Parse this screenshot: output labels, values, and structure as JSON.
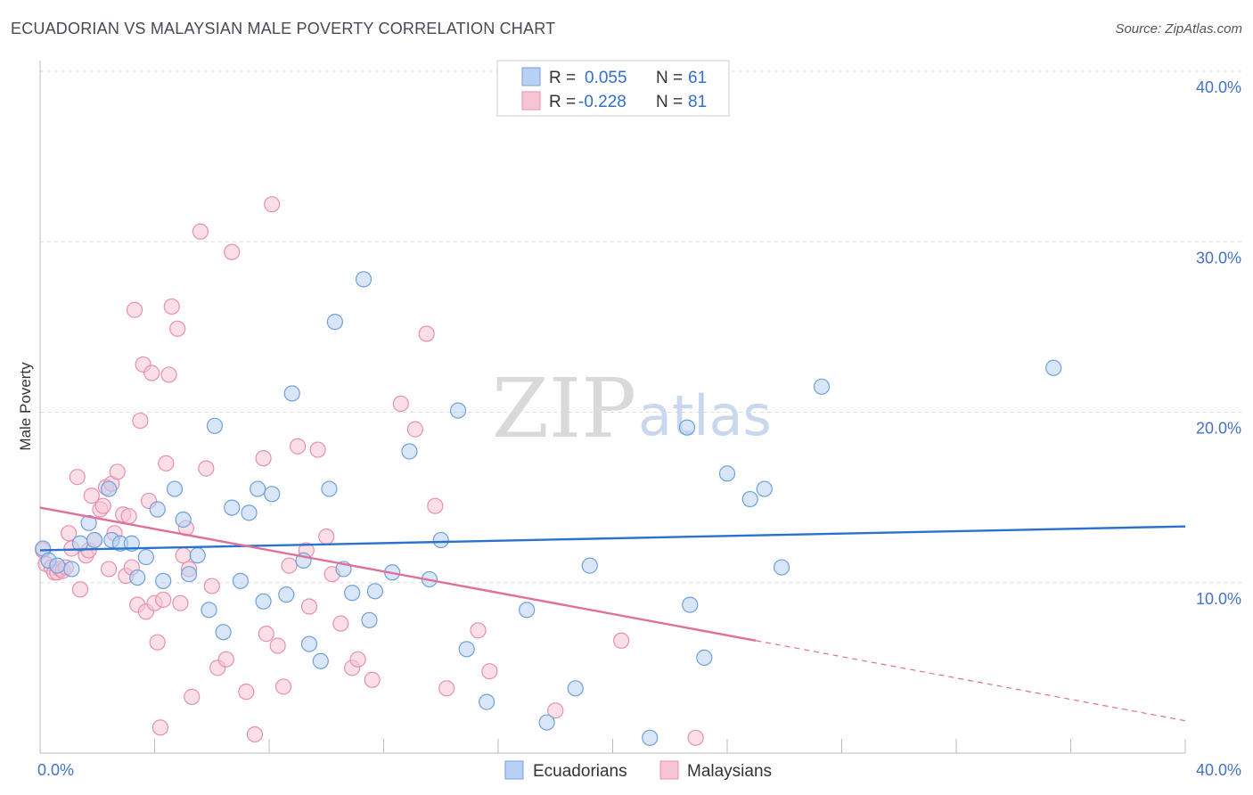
{
  "title": "ECUADORIAN VS MALAYSIAN MALE POVERTY CORRELATION CHART",
  "source": "Source: ZipAtlas.com",
  "watermark": {
    "zip": "ZIP",
    "atlas": "atlas"
  },
  "colors": {
    "blue": "#6fa0dc",
    "blue_fill": "#b8d1f2",
    "blue_line": "#2a72cc",
    "pink": "#e98fae",
    "pink_fill": "#f7c4d4",
    "pink_line": "#e0709a",
    "tick": "#4472c4",
    "grid": "#dddddd"
  },
  "legend": {
    "rows": [
      {
        "r_label": "R =",
        "r_value": "0.055",
        "n_label": "N =",
        "n_value": "61"
      },
      {
        "r_label": "R =",
        "r_value": "-0.228",
        "n_label": "N =",
        "n_value": "81"
      }
    ]
  },
  "bottom_legend": [
    "Ecuadorians",
    "Malaysians"
  ],
  "chart_data": {
    "type": "scatter",
    "title": "ECUADORIAN VS MALAYSIAN MALE POVERTY CORRELATION CHART",
    "xlabel": "",
    "ylabel": "Male Poverty",
    "xlim": [
      0,
      40
    ],
    "ylim": [
      0,
      40
    ],
    "x_tick_labels": [
      "0.0%",
      "40.0%"
    ],
    "y_ticks": [
      10,
      20,
      30,
      40
    ],
    "y_tick_labels": [
      "10.0%",
      "20.0%",
      "30.0%",
      "40.0%"
    ],
    "series": [
      {
        "name": "Ecuadorians",
        "R": 0.055,
        "N": 61,
        "trend": {
          "x0": 0,
          "y0": 11.9,
          "x1": 40,
          "y1": 13.3
        },
        "points": [
          [
            0.1,
            12.0
          ],
          [
            0.3,
            11.3
          ],
          [
            0.6,
            11.0
          ],
          [
            1.1,
            10.8
          ],
          [
            1.4,
            12.3
          ],
          [
            1.7,
            13.5
          ],
          [
            1.9,
            12.5
          ],
          [
            2.4,
            15.5
          ],
          [
            2.5,
            12.5
          ],
          [
            2.8,
            12.3
          ],
          [
            3.2,
            12.3
          ],
          [
            3.4,
            10.3
          ],
          [
            3.7,
            11.5
          ],
          [
            4.1,
            14.3
          ],
          [
            4.3,
            10.1
          ],
          [
            4.7,
            15.5
          ],
          [
            5.0,
            13.7
          ],
          [
            5.2,
            10.5
          ],
          [
            5.5,
            11.6
          ],
          [
            5.9,
            8.4
          ],
          [
            6.1,
            19.2
          ],
          [
            6.4,
            7.1
          ],
          [
            6.7,
            14.4
          ],
          [
            7.0,
            10.1
          ],
          [
            7.3,
            14.1
          ],
          [
            7.6,
            15.5
          ],
          [
            7.8,
            8.9
          ],
          [
            8.1,
            15.2
          ],
          [
            8.6,
            9.3
          ],
          [
            8.8,
            21.1
          ],
          [
            9.2,
            11.3
          ],
          [
            9.4,
            6.4
          ],
          [
            9.8,
            5.4
          ],
          [
            10.1,
            15.5
          ],
          [
            10.3,
            25.3
          ],
          [
            10.6,
            10.8
          ],
          [
            10.9,
            9.4
          ],
          [
            11.3,
            27.8
          ],
          [
            11.5,
            7.8
          ],
          [
            11.7,
            9.5
          ],
          [
            12.3,
            10.6
          ],
          [
            12.9,
            17.7
          ],
          [
            13.6,
            10.2
          ],
          [
            14.0,
            12.5
          ],
          [
            14.6,
            20.1
          ],
          [
            14.9,
            6.1
          ],
          [
            15.6,
            3.0
          ],
          [
            17.0,
            8.4
          ],
          [
            17.7,
            1.8
          ],
          [
            18.7,
            3.8
          ],
          [
            19.2,
            11.0
          ],
          [
            21.3,
            0.9
          ],
          [
            22.6,
            19.1
          ],
          [
            22.7,
            8.7
          ],
          [
            23.2,
            5.6
          ],
          [
            24.0,
            16.4
          ],
          [
            24.8,
            14.9
          ],
          [
            25.3,
            15.5
          ],
          [
            25.9,
            10.9
          ],
          [
            27.3,
            21.5
          ],
          [
            35.4,
            22.6
          ]
        ]
      },
      {
        "name": "Malaysians",
        "R": -0.228,
        "N": 81,
        "trend": {
          "x0": 0,
          "y0": 14.4,
          "x1": 25,
          "y1": 6.6,
          "dash_to_x": 40,
          "dash_to_y": 1.9
        },
        "points": [
          [
            0.1,
            11.9
          ],
          [
            0.2,
            11.1
          ],
          [
            0.4,
            10.9
          ],
          [
            0.5,
            10.6
          ],
          [
            0.6,
            10.6
          ],
          [
            0.7,
            10.8
          ],
          [
            0.8,
            10.7
          ],
          [
            0.9,
            10.9
          ],
          [
            1.0,
            12.9
          ],
          [
            1.1,
            12.0
          ],
          [
            1.3,
            16.2
          ],
          [
            1.4,
            9.6
          ],
          [
            1.6,
            11.6
          ],
          [
            1.7,
            11.9
          ],
          [
            1.8,
            15.1
          ],
          [
            1.9,
            12.5
          ],
          [
            2.1,
            14.3
          ],
          [
            2.2,
            14.5
          ],
          [
            2.3,
            15.6
          ],
          [
            2.4,
            10.8
          ],
          [
            2.5,
            15.8
          ],
          [
            2.6,
            12.9
          ],
          [
            2.7,
            16.5
          ],
          [
            2.9,
            14.0
          ],
          [
            3.0,
            10.4
          ],
          [
            3.1,
            13.9
          ],
          [
            3.2,
            10.9
          ],
          [
            3.3,
            26.0
          ],
          [
            3.4,
            8.7
          ],
          [
            3.5,
            19.5
          ],
          [
            3.6,
            22.8
          ],
          [
            3.7,
            8.3
          ],
          [
            3.8,
            14.8
          ],
          [
            3.9,
            22.3
          ],
          [
            4.0,
            8.8
          ],
          [
            4.1,
            6.5
          ],
          [
            4.2,
            1.5
          ],
          [
            4.3,
            9.0
          ],
          [
            4.4,
            17.0
          ],
          [
            4.5,
            22.2
          ],
          [
            4.6,
            26.2
          ],
          [
            4.8,
            24.9
          ],
          [
            4.9,
            8.8
          ],
          [
            5.0,
            11.6
          ],
          [
            5.1,
            13.2
          ],
          [
            5.2,
            10.8
          ],
          [
            5.3,
            3.3
          ],
          [
            5.6,
            30.6
          ],
          [
            5.8,
            16.7
          ],
          [
            6.0,
            9.8
          ],
          [
            6.2,
            5.0
          ],
          [
            6.5,
            5.5
          ],
          [
            6.7,
            29.4
          ],
          [
            7.2,
            3.6
          ],
          [
            7.5,
            1.1
          ],
          [
            7.8,
            17.3
          ],
          [
            7.9,
            7.0
          ],
          [
            8.1,
            32.2
          ],
          [
            8.3,
            6.3
          ],
          [
            8.5,
            3.9
          ],
          [
            8.7,
            11.0
          ],
          [
            9.0,
            18.0
          ],
          [
            9.3,
            11.9
          ],
          [
            9.4,
            8.6
          ],
          [
            9.7,
            17.8
          ],
          [
            10.0,
            12.7
          ],
          [
            10.2,
            10.5
          ],
          [
            10.5,
            7.6
          ],
          [
            10.9,
            5.0
          ],
          [
            11.1,
            5.5
          ],
          [
            11.6,
            4.3
          ],
          [
            12.6,
            20.5
          ],
          [
            13.1,
            19.0
          ],
          [
            13.5,
            24.6
          ],
          [
            13.8,
            14.5
          ],
          [
            14.2,
            3.8
          ],
          [
            15.3,
            7.2
          ],
          [
            15.7,
            4.8
          ],
          [
            18.0,
            2.5
          ],
          [
            20.3,
            6.6
          ],
          [
            22.9,
            0.9
          ]
        ]
      }
    ]
  }
}
